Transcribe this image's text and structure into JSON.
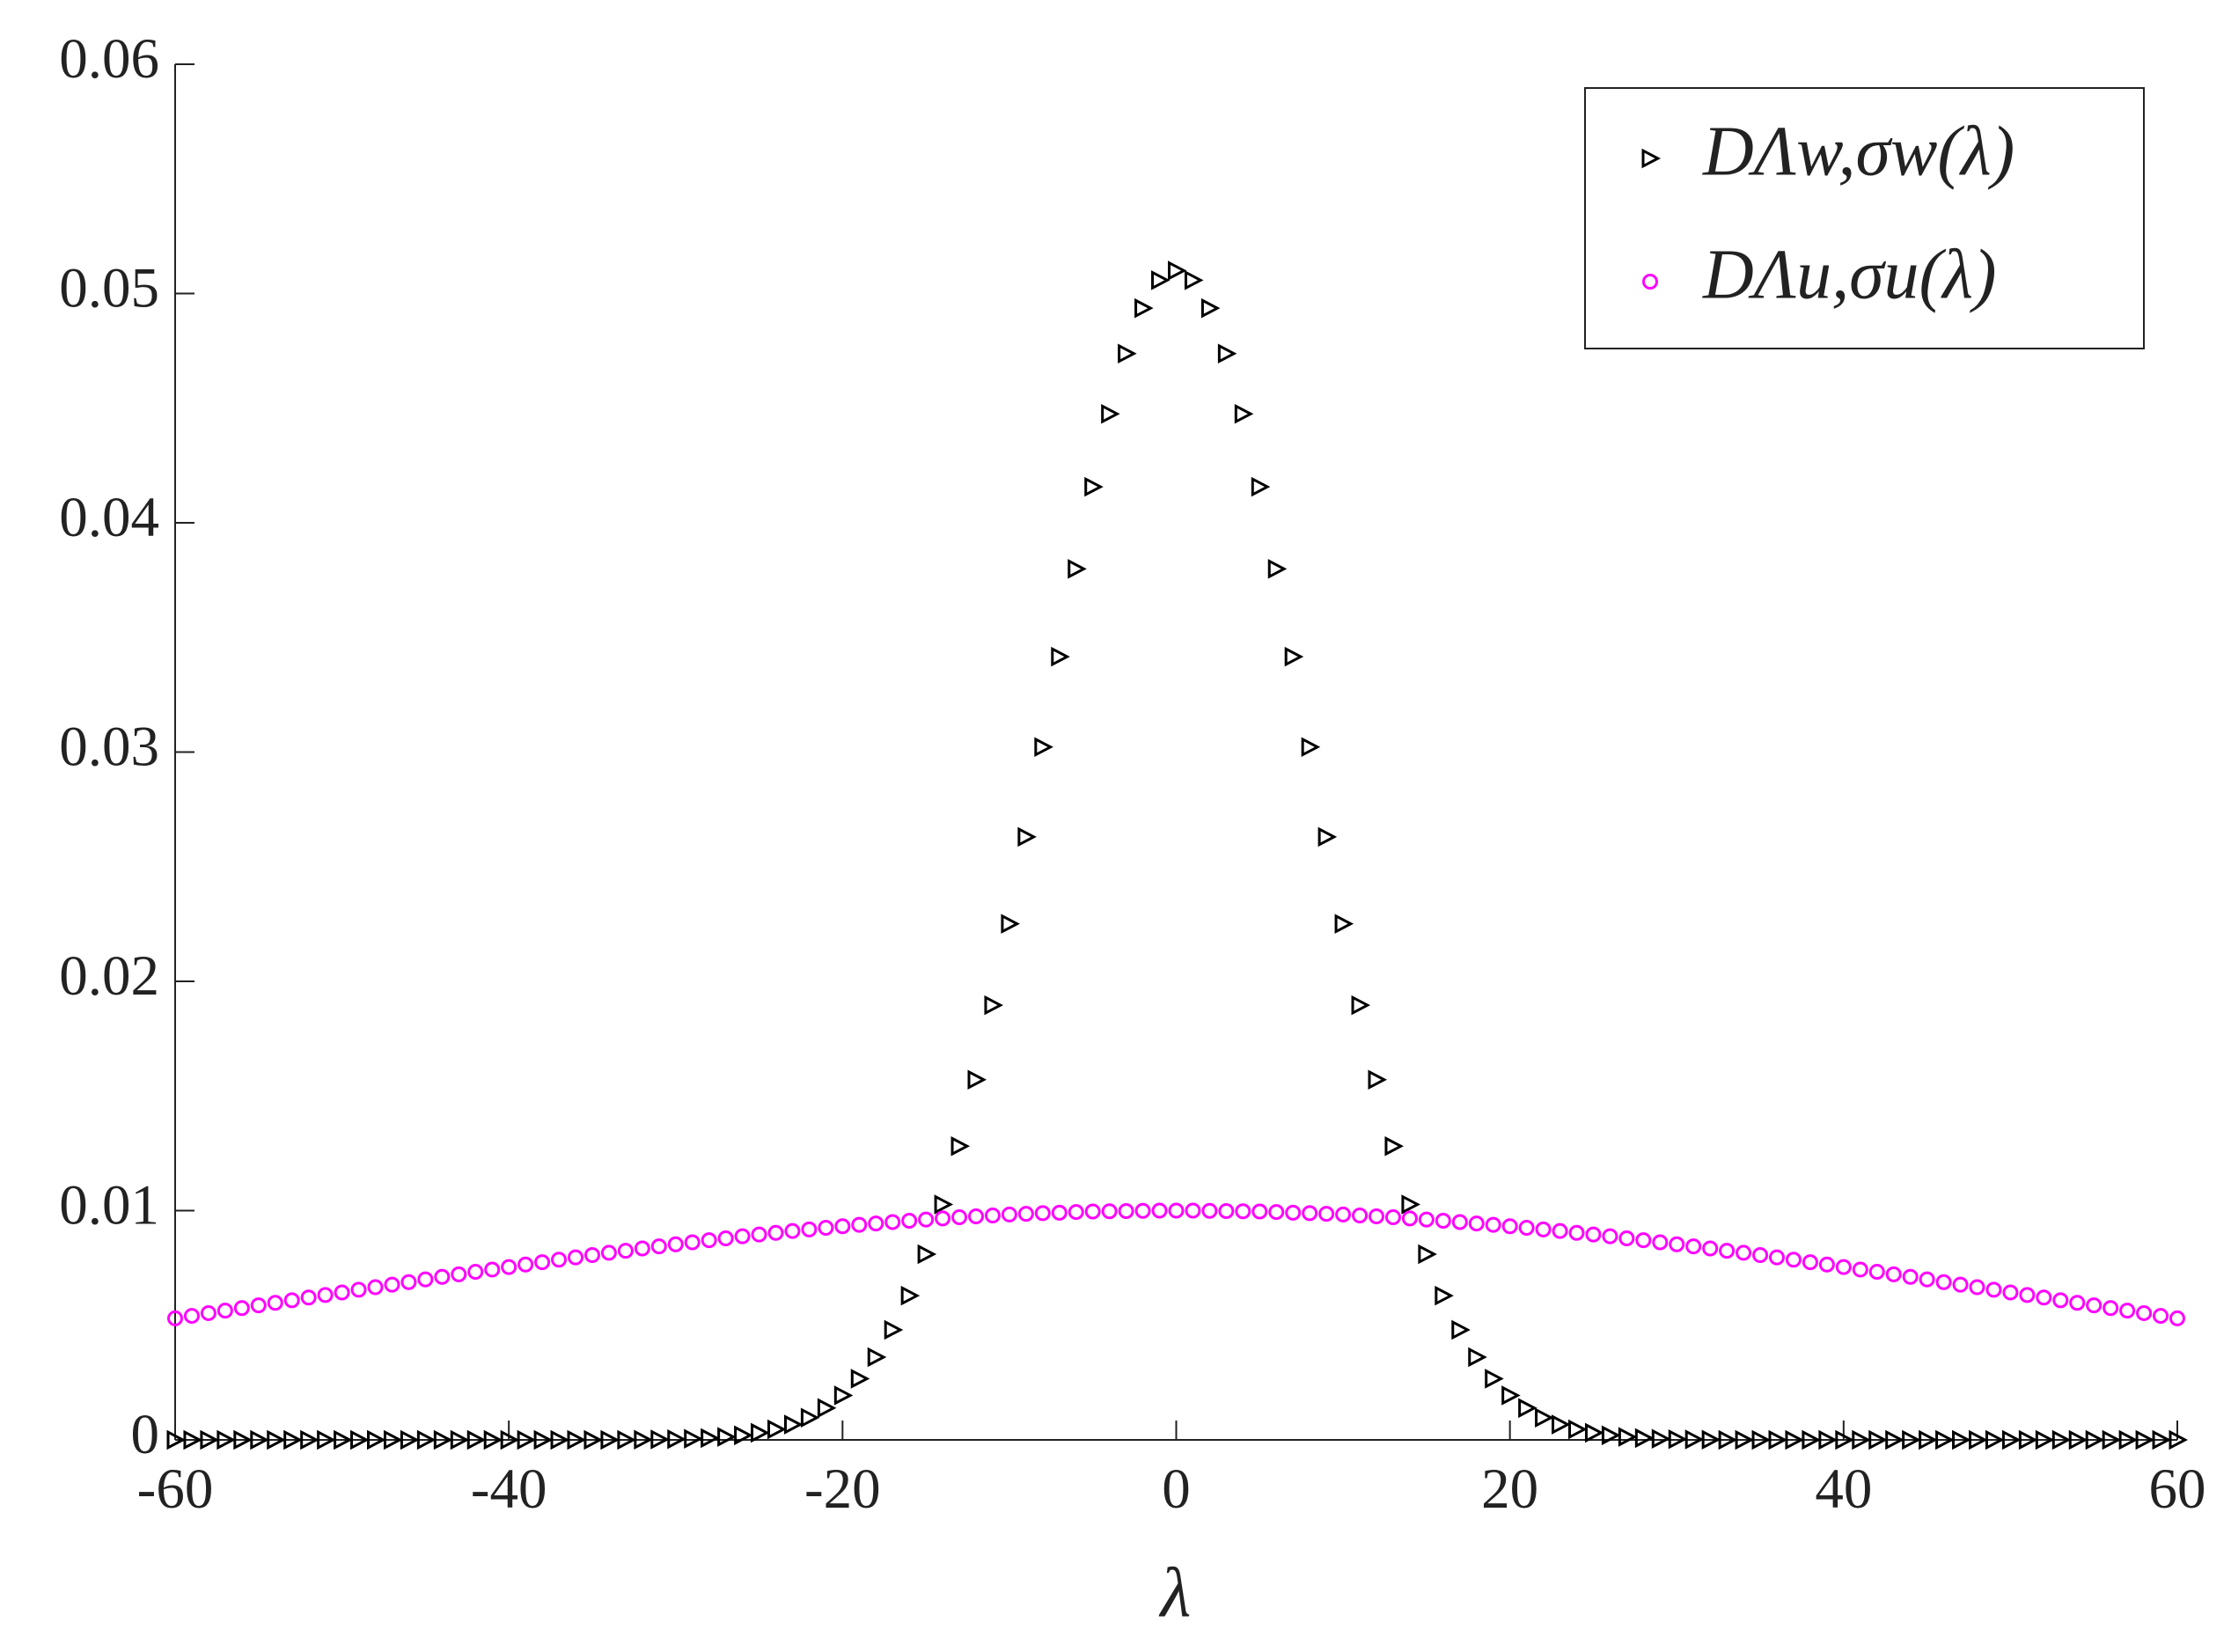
{
  "chart_data": {
    "type": "scatter",
    "xlabel": "λ",
    "x": [
      -60,
      -59,
      -58,
      -57,
      -56,
      -55,
      -54,
      -53,
      -52,
      -51,
      -50,
      -49,
      -48,
      -47,
      -46,
      -45,
      -44,
      -43,
      -42,
      -41,
      -40,
      -39,
      -38,
      -37,
      -36,
      -35,
      -34,
      -33,
      -32,
      -31,
      -30,
      -29,
      -28,
      -27,
      -26,
      -25,
      -24,
      -23,
      -22,
      -21,
      -20,
      -19,
      -18,
      -17,
      -16,
      -15,
      -14,
      -13,
      -12,
      -11,
      -10,
      -9,
      -8,
      -7,
      -6,
      -5,
      -4,
      -3,
      -2,
      -1,
      0,
      1,
      2,
      3,
      4,
      5,
      6,
      7,
      8,
      9,
      10,
      11,
      12,
      13,
      14,
      15,
      16,
      17,
      18,
      19,
      20,
      21,
      22,
      23,
      24,
      25,
      26,
      27,
      28,
      29,
      30,
      31,
      32,
      33,
      34,
      35,
      36,
      37,
      38,
      39,
      40,
      41,
      42,
      43,
      44,
      45,
      46,
      47,
      48,
      49,
      50,
      51,
      52,
      53,
      54,
      55,
      56,
      57,
      58,
      59,
      60
    ],
    "series": [
      {
        "name": "DΛw,σw(λ)",
        "color": "#000000",
        "marker": "triangle-right",
        "values": [
          0,
          0,
          0,
          0,
          0,
          0,
          0,
          0,
          0,
          0,
          0,
          0,
          0,
          0,
          0,
          0,
          0,
          0,
          0,
          0,
          0,
          0,
          0,
          0,
          0,
          0,
          0,
          0,
          1e-05,
          2e-05,
          3e-05,
          5e-05,
          8e-05,
          0.00013,
          0.0002,
          0.00031,
          0.00046,
          0.00067,
          0.00097,
          0.00139,
          0.00194,
          0.00267,
          0.00361,
          0.0048,
          0.00629,
          0.0081,
          0.01027,
          0.01281,
          0.01571,
          0.01896,
          0.02251,
          0.0263,
          0.03022,
          0.03416,
          0.03799,
          0.04157,
          0.04475,
          0.04738,
          0.04936,
          0.05058,
          0.051,
          0.05058,
          0.04936,
          0.04738,
          0.04475,
          0.04157,
          0.03799,
          0.03416,
          0.03022,
          0.0263,
          0.02251,
          0.01896,
          0.01571,
          0.01281,
          0.01027,
          0.0081,
          0.00629,
          0.0048,
          0.00361,
          0.00267,
          0.00194,
          0.00139,
          0.00097,
          0.00067,
          0.00046,
          0.00031,
          0.0002,
          0.00013,
          8e-05,
          5e-05,
          3e-05,
          2e-05,
          1e-05,
          0,
          0,
          0,
          0,
          0,
          0,
          0,
          0,
          0,
          0,
          0,
          0,
          0,
          0,
          0,
          0,
          0,
          0,
          0,
          0,
          0,
          0,
          0,
          0,
          0,
          0,
          0,
          0
        ]
      },
      {
        "name": "DΛu,σu(λ)",
        "color": "#ff00ff",
        "marker": "circle",
        "values": [
          0.0053,
          0.00541,
          0.00553,
          0.00564,
          0.00575,
          0.00587,
          0.00598,
          0.00609,
          0.00621,
          0.00632,
          0.00643,
          0.00655,
          0.00666,
          0.00677,
          0.00688,
          0.007,
          0.00711,
          0.00722,
          0.00733,
          0.00743,
          0.00754,
          0.00765,
          0.00775,
          0.00786,
          0.00796,
          0.00806,
          0.00816,
          0.00825,
          0.00835,
          0.00844,
          0.00853,
          0.00862,
          0.00871,
          0.00879,
          0.00888,
          0.00896,
          0.00903,
          0.00911,
          0.00918,
          0.00925,
          0.00932,
          0.00938,
          0.00944,
          0.0095,
          0.00956,
          0.00961,
          0.00966,
          0.00971,
          0.00975,
          0.00979,
          0.00983,
          0.00986,
          0.00989,
          0.00991,
          0.00994,
          0.00996,
          0.00997,
          0.00998,
          0.00999,
          0.01,
          0.01,
          0.01,
          0.00999,
          0.00998,
          0.00997,
          0.00996,
          0.00994,
          0.00991,
          0.00989,
          0.00986,
          0.00983,
          0.00979,
          0.00975,
          0.00971,
          0.00966,
          0.00961,
          0.00956,
          0.0095,
          0.00944,
          0.00938,
          0.00932,
          0.00925,
          0.00918,
          0.00911,
          0.00903,
          0.00896,
          0.00888,
          0.00879,
          0.00871,
          0.00862,
          0.00853,
          0.00844,
          0.00835,
          0.00825,
          0.00816,
          0.00806,
          0.00796,
          0.00786,
          0.00775,
          0.00765,
          0.00754,
          0.00743,
          0.00733,
          0.00722,
          0.00711,
          0.007,
          0.00688,
          0.00677,
          0.00666,
          0.00655,
          0.00643,
          0.00632,
          0.00621,
          0.00609,
          0.00598,
          0.00587,
          0.00575,
          0.00564,
          0.00553,
          0.00541,
          0.0053
        ]
      }
    ],
    "xlim": [
      -60,
      60
    ],
    "xticks": [
      -60,
      -40,
      -20,
      0,
      20,
      40,
      60
    ],
    "ylim": [
      0,
      0.06
    ],
    "yticks": [
      0,
      0.01,
      0.02,
      0.03,
      0.04,
      0.05,
      0.06
    ],
    "grid": false,
    "legend": "upper right"
  }
}
